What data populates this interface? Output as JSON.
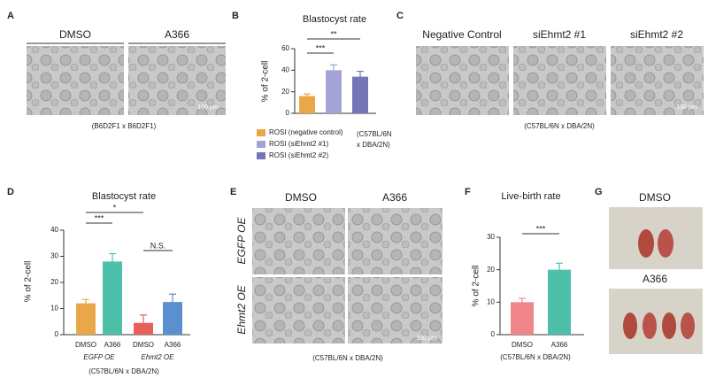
{
  "panels": {
    "a": {
      "letter": "A",
      "labels": [
        "DMSO",
        "A366"
      ],
      "scale": "100 μm",
      "caption": "(B6D2F1 x B6D2F1)"
    },
    "c": {
      "letter": "C",
      "labels": [
        "Negative Control",
        "siEhmt2 #1",
        "siEhmt2 #2"
      ],
      "scale": "100 μm",
      "caption": "(C57BL/6N x DBA/2N)"
    },
    "e": {
      "letter": "E",
      "labels": [
        "DMSO",
        "A366"
      ],
      "rows": [
        "EGFP OE",
        "Ehmt2 OE"
      ],
      "scale": "100 μm",
      "caption": "(C57BL/6N x DBA/2N)"
    },
    "g": {
      "letter": "G",
      "labels": [
        "DMSO",
        "A366"
      ]
    }
  },
  "chart_data": [
    {
      "type": "bar",
      "letter": "B",
      "title": "Blastocyst rate",
      "ylabel": "% of 2-cell",
      "categories": [
        null,
        null,
        null
      ],
      "values": [
        16,
        40,
        34
      ],
      "errors": [
        2,
        5,
        5
      ],
      "colors": [
        "#e8a84a",
        "#a3a3d6",
        "#7575b8"
      ],
      "legend": [
        "ROSI (negative control)",
        "ROSI (siEhmt2 #1)",
        "ROSI (siEhmt2 #2)"
      ],
      "notes": [
        "(C57BL/6N",
        "x DBA/2N)"
      ],
      "significance": [
        "***",
        "**"
      ],
      "ylim": [
        0,
        60
      ],
      "yticks": [
        0,
        20,
        40,
        60
      ]
    },
    {
      "type": "bar",
      "letter": "D",
      "title": "Blastocyst rate",
      "ylabel": "% of 2-cell",
      "categories": [
        "DMSO",
        "A366",
        "DMSO",
        "A366"
      ],
      "values": [
        12,
        28,
        4.5,
        12.5
      ],
      "errors": [
        1.5,
        3,
        3,
        3
      ],
      "colors": [
        "#e8a84a",
        "#4cc0a8",
        "#e8605a",
        "#5b8fd0"
      ],
      "groups": [
        "EGFP OE",
        "Ehmt2 OE"
      ],
      "notes": [
        "(C57BL/6N x DBA/2N)"
      ],
      "significance": [
        "***",
        "*",
        "N.S."
      ],
      "ylim": [
        0,
        40
      ],
      "yticks": [
        0,
        10,
        20,
        30,
        40
      ]
    },
    {
      "type": "bar",
      "letter": "F",
      "title": "Live-birth rate",
      "ylabel": "% of 2-cell",
      "categories": [
        "DMSO",
        "A366"
      ],
      "values": [
        10,
        20
      ],
      "errors": [
        1.2,
        2
      ],
      "colors": [
        "#f0868a",
        "#4cc0a8"
      ],
      "notes": [
        "(C57BL/6N x DBA/2N)"
      ],
      "significance": [
        "***"
      ],
      "ylim": [
        0,
        30
      ],
      "yticks": [
        0,
        10,
        20,
        30
      ]
    }
  ]
}
